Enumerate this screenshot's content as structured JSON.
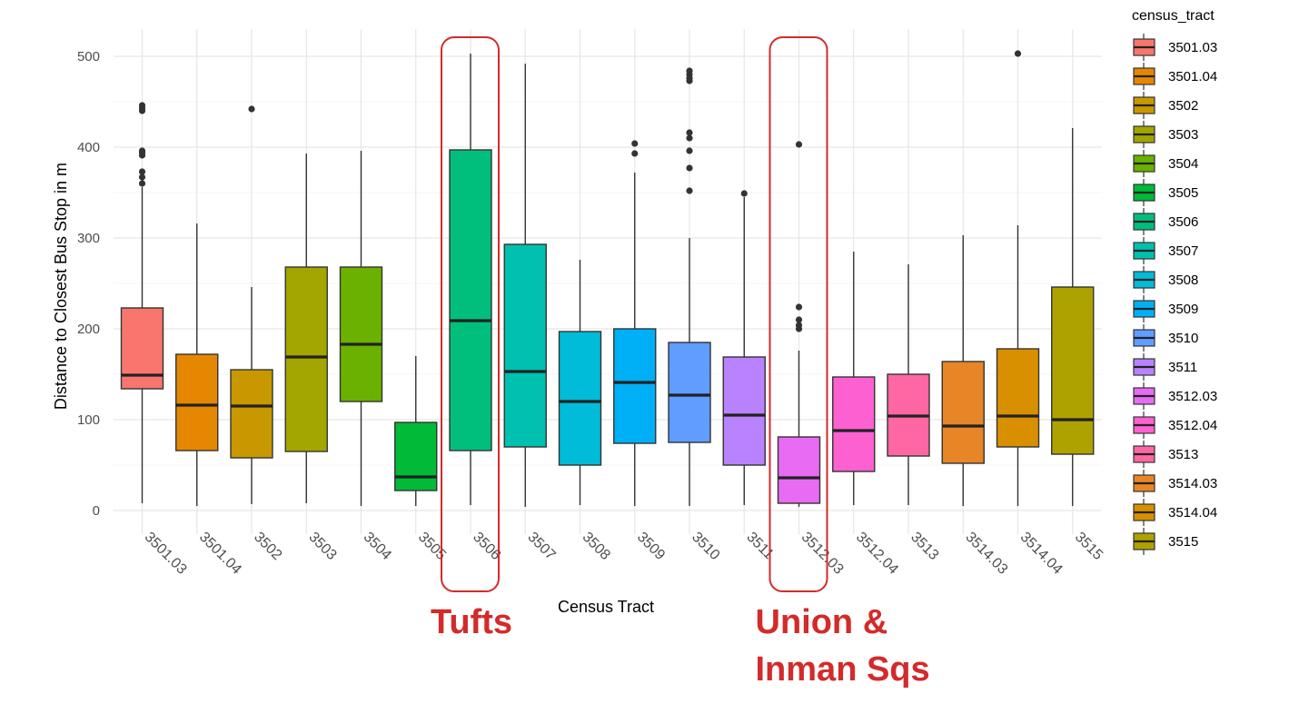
{
  "chart_data": {
    "type": "box",
    "xlabel": "Census Tract",
    "ylabel": "Distance to Closest Bus Stop in m",
    "ylim": [
      -25,
      525
    ],
    "yticks": [
      0,
      100,
      200,
      300,
      400,
      500
    ],
    "grid": true,
    "legend": {
      "title": "census_tract",
      "position": "right"
    },
    "categories": [
      "3501.03",
      "3501.04",
      "3502",
      "3503",
      "3504",
      "3505",
      "3506",
      "3507",
      "3508",
      "3509",
      "3510",
      "3511",
      "3512.03",
      "3512.04",
      "3513",
      "3514.03",
      "3514.04",
      "3515"
    ],
    "colors": [
      "#F8766D",
      "#E58700",
      "#C99800",
      "#A3A500",
      "#6BB100",
      "#00BA38",
      "#00BF7D",
      "#00C0AF",
      "#00BCD8",
      "#00B0F6",
      "#619CFF",
      "#B983FF",
      "#E76BF3",
      "#FD61D1",
      "#FF67A4",
      "#E88526",
      "#D89000",
      "#AEA200"
    ],
    "boxes": [
      {
        "tract": "3501.03",
        "min": 8,
        "q1": 134,
        "median": 149,
        "q3": 223,
        "max": 356,
        "outliers": [
          360,
          367,
          373,
          391,
          394,
          396,
          440,
          443,
          446
        ]
      },
      {
        "tract": "3501.04",
        "min": 5,
        "q1": 66,
        "median": 116,
        "q3": 172,
        "max": 316,
        "outliers": []
      },
      {
        "tract": "3502",
        "min": 7,
        "q1": 58,
        "median": 115,
        "q3": 155,
        "max": 246,
        "outliers": [
          442
        ]
      },
      {
        "tract": "3503",
        "min": 8,
        "q1": 65,
        "median": 169,
        "q3": 268,
        "max": 393,
        "outliers": []
      },
      {
        "tract": "3504",
        "min": 5,
        "q1": 120,
        "median": 183,
        "q3": 268,
        "max": 396,
        "outliers": []
      },
      {
        "tract": "3505",
        "min": 5,
        "q1": 22,
        "median": 37,
        "q3": 97,
        "max": 170,
        "outliers": []
      },
      {
        "tract": "3506",
        "min": 6,
        "q1": 66,
        "median": 209,
        "q3": 397,
        "max": 503,
        "outliers": []
      },
      {
        "tract": "3507",
        "min": 4,
        "q1": 70,
        "median": 153,
        "q3": 293,
        "max": 492,
        "outliers": []
      },
      {
        "tract": "3508",
        "min": 6,
        "q1": 50,
        "median": 120,
        "q3": 197,
        "max": 276,
        "outliers": []
      },
      {
        "tract": "3509",
        "min": 5,
        "q1": 74,
        "median": 141,
        "q3": 200,
        "max": 372,
        "outliers": [
          393,
          404
        ]
      },
      {
        "tract": "3510",
        "min": 5,
        "q1": 75,
        "median": 127,
        "q3": 185,
        "max": 300,
        "outliers": [
          352,
          377,
          396,
          410,
          416,
          473,
          476,
          480,
          484
        ]
      },
      {
        "tract": "3511",
        "min": 6,
        "q1": 50,
        "median": 105,
        "q3": 169,
        "max": 345,
        "outliers": [
          349
        ]
      },
      {
        "tract": "3512.03",
        "min": 4,
        "q1": 8,
        "median": 36,
        "q3": 81,
        "max": 176,
        "outliers": [
          200,
          204,
          210,
          224,
          403
        ]
      },
      {
        "tract": "3512.04",
        "min": 6,
        "q1": 43,
        "median": 88,
        "q3": 147,
        "max": 285,
        "outliers": []
      },
      {
        "tract": "3513",
        "min": 6,
        "q1": 60,
        "median": 104,
        "q3": 150,
        "max": 271,
        "outliers": []
      },
      {
        "tract": "3514.03",
        "min": 5,
        "q1": 52,
        "median": 93,
        "q3": 164,
        "max": 303,
        "outliers": []
      },
      {
        "tract": "3514.04",
        "min": 5,
        "q1": 70,
        "median": 104,
        "q3": 178,
        "max": 314,
        "outliers": [
          503
        ]
      },
      {
        "tract": "3515",
        "min": 5,
        "q1": 62,
        "median": 100,
        "q3": 246,
        "max": 421,
        "outliers": []
      }
    ],
    "highlights": [
      {
        "tract": "3506",
        "label_lines": [
          "Tufts"
        ]
      },
      {
        "tract": "3512.03",
        "label_lines": [
          "Union &",
          "Inman Sqs"
        ]
      }
    ]
  }
}
